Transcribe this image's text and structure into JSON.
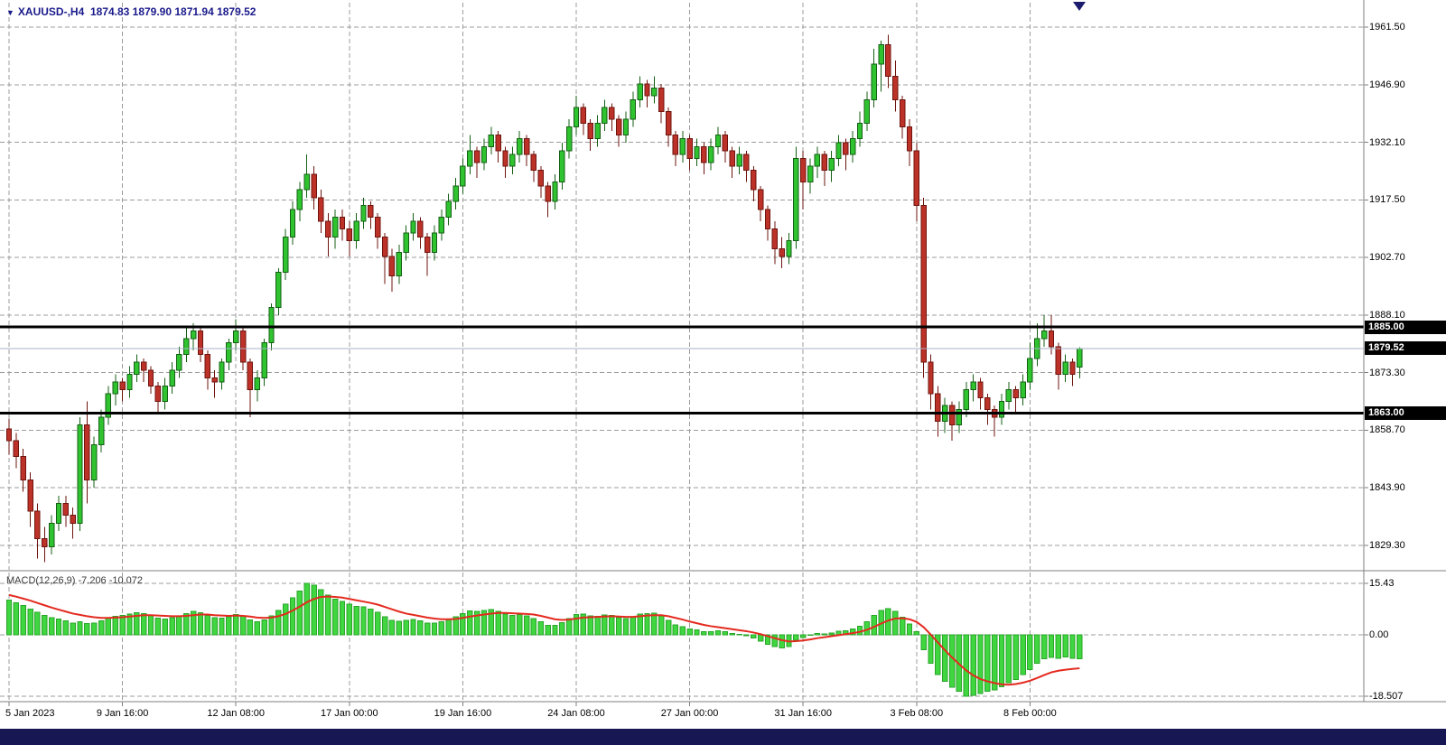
{
  "header": {
    "collapse_icon": "▼",
    "title": "XAUUSD-,H4",
    "values": "1874.83 1879.90 1871.94 1879.52"
  },
  "price_axis": {
    "labels": [
      "1961.50",
      "1946.90",
      "1932.10",
      "1917.50",
      "1902.70",
      "1888.10",
      "1873.30",
      "1858.70",
      "1843.90",
      "1829.30"
    ]
  },
  "time_axis": {
    "labels": [
      "5 Jan 2023",
      "9 Jan 16:00",
      "12 Jan 08:00",
      "17 Jan 00:00",
      "19 Jan 16:00",
      "24 Jan 08:00",
      "27 Jan 00:00",
      "31 Jan 16:00",
      "3 Feb 08:00",
      "8 Feb 00:00"
    ]
  },
  "levels": {
    "resistance": "1885.00",
    "support": "1863.00",
    "bid": "1879.52"
  },
  "macd_panel": {
    "label": "MACD(12,26,9)",
    "values": "-7.206 -10.072",
    "scale_labels": [
      "15.43",
      "0.00",
      "-18.507"
    ]
  },
  "colors": {
    "bull": "#2fc42f",
    "bull_border": "#145f14",
    "bear": "#bd3228",
    "bear_border": "#6e140e",
    "macd_bar": "#3fd63f",
    "macd_bar_border": "#2aa52a",
    "macd_signal": "#e42a1f",
    "grid": "#9c9c9c",
    "separator": "#7f7f7f",
    "level_line": "#000000",
    "bid_line": "#a8b0c8",
    "level_label_bg": "#000000",
    "level_label_fg": "#ffffff",
    "header_text": "#1a1a8c",
    "bottom_bar": "#171753",
    "marker": "#1c1c6e"
  },
  "chart_data": {
    "type": "candlestick",
    "symbol": "XAUUSD-",
    "timeframe": "H4",
    "title": "XAUUSD- H4 with MACD(12,26,9)",
    "ohlc_current": {
      "open": 1874.83,
      "high": 1879.9,
      "low": 1871.94,
      "close": 1879.52
    },
    "y_axis_ticks": [
      1961.5,
      1946.9,
      1932.1,
      1917.5,
      1902.7,
      1888.1,
      1873.3,
      1858.7,
      1843.9,
      1829.3
    ],
    "x_tick_bars": [
      0,
      16,
      32,
      48,
      64,
      80,
      96,
      112,
      128,
      144
    ],
    "hlines": [
      1885.0,
      1863.0
    ],
    "current_price": 1879.52,
    "candles": [
      [
        1859,
        1861.5,
        1852.5,
        1856
      ],
      [
        1856,
        1858,
        1849,
        1852
      ],
      [
        1852,
        1854,
        1843,
        1846
      ],
      [
        1846,
        1848,
        1834,
        1838
      ],
      [
        1838,
        1840,
        1826,
        1831
      ],
      [
        1831,
        1834,
        1825,
        1829
      ],
      [
        1829,
        1837,
        1827,
        1835
      ],
      [
        1835,
        1842,
        1833,
        1840
      ],
      [
        1840,
        1842,
        1834,
        1837
      ],
      [
        1837,
        1839,
        1831,
        1835
      ],
      [
        1835,
        1862,
        1833,
        1860
      ],
      [
        1860,
        1866,
        1840,
        1846
      ],
      [
        1846,
        1857,
        1844,
        1855
      ],
      [
        1855,
        1864,
        1853,
        1862
      ],
      [
        1862,
        1870,
        1860,
        1868
      ],
      [
        1868,
        1873,
        1865,
        1871
      ],
      [
        1871,
        1872,
        1866,
        1869
      ],
      [
        1869,
        1875,
        1867,
        1873
      ],
      [
        1873,
        1878,
        1871,
        1876
      ],
      [
        1876,
        1877,
        1871,
        1874
      ],
      [
        1874,
        1875,
        1868,
        1870
      ],
      [
        1870,
        1871,
        1863,
        1866
      ],
      [
        1866,
        1872,
        1864,
        1870
      ],
      [
        1870,
        1876,
        1868,
        1874
      ],
      [
        1874,
        1880,
        1872,
        1878
      ],
      [
        1878,
        1885,
        1876,
        1882
      ],
      [
        1882,
        1886,
        1879,
        1884
      ],
      [
        1884,
        1885,
        1876,
        1878
      ],
      [
        1878,
        1879,
        1869,
        1872
      ],
      [
        1872,
        1874,
        1867,
        1871
      ],
      [
        1871,
        1877,
        1869,
        1876
      ],
      [
        1876,
        1882,
        1874,
        1881
      ],
      [
        1881,
        1887,
        1879,
        1884
      ],
      [
        1884,
        1885,
        1874,
        1876
      ],
      [
        1876,
        1877,
        1862,
        1869
      ],
      [
        1869,
        1874,
        1866,
        1872
      ],
      [
        1872,
        1882,
        1870,
        1881
      ],
      [
        1881,
        1891,
        1879,
        1890
      ],
      [
        1890,
        1900,
        1888,
        1899
      ],
      [
        1899,
        1910,
        1897,
        1908
      ],
      [
        1908,
        1917,
        1906,
        1915
      ],
      [
        1915,
        1922,
        1912,
        1920
      ],
      [
        1920,
        1929,
        1918,
        1924
      ],
      [
        1924,
        1926,
        1915,
        1918
      ],
      [
        1918,
        1920,
        1909,
        1912
      ],
      [
        1912,
        1914,
        1903,
        1908
      ],
      [
        1908,
        1915,
        1905,
        1913
      ],
      [
        1913,
        1915,
        1907,
        1910
      ],
      [
        1910,
        1912,
        1903,
        1907
      ],
      [
        1907,
        1914,
        1905,
        1912
      ],
      [
        1912,
        1918,
        1910,
        1916
      ],
      [
        1916,
        1917,
        1910,
        1913
      ],
      [
        1913,
        1914,
        1905,
        1908
      ],
      [
        1908,
        1909,
        1896,
        1903
      ],
      [
        1903,
        1905,
        1894,
        1898
      ],
      [
        1898,
        1906,
        1896,
        1904
      ],
      [
        1904,
        1911,
        1902,
        1909
      ],
      [
        1909,
        1914,
        1907,
        1912
      ],
      [
        1912,
        1913,
        1905,
        1908
      ],
      [
        1908,
        1909,
        1898,
        1904
      ],
      [
        1904,
        1911,
        1902,
        1909
      ],
      [
        1909,
        1915,
        1907,
        1913
      ],
      [
        1913,
        1919,
        1911,
        1917
      ],
      [
        1917,
        1923,
        1915,
        1921
      ],
      [
        1921,
        1928,
        1919,
        1926
      ],
      [
        1926,
        1934,
        1924,
        1930
      ],
      [
        1930,
        1931,
        1923,
        1927
      ],
      [
        1927,
        1933,
        1925,
        1931
      ],
      [
        1931,
        1936,
        1929,
        1934
      ],
      [
        1934,
        1935,
        1927,
        1930
      ],
      [
        1930,
        1931,
        1923,
        1926
      ],
      [
        1926,
        1931,
        1924,
        1929
      ],
      [
        1929,
        1935,
        1927,
        1933
      ],
      [
        1933,
        1934,
        1926,
        1929
      ],
      [
        1929,
        1930,
        1922,
        1925
      ],
      [
        1925,
        1926,
        1918,
        1921
      ],
      [
        1921,
        1922,
        1913,
        1917
      ],
      [
        1917,
        1924,
        1915,
        1922
      ],
      [
        1922,
        1932,
        1920,
        1930
      ],
      [
        1930,
        1938,
        1928,
        1936
      ],
      [
        1936,
        1944,
        1934,
        1941
      ],
      [
        1941,
        1942,
        1934,
        1937
      ],
      [
        1937,
        1938,
        1930,
        1933
      ],
      [
        1933,
        1939,
        1931,
        1937
      ],
      [
        1937,
        1943,
        1935,
        1941
      ],
      [
        1941,
        1942,
        1935,
        1938
      ],
      [
        1938,
        1939,
        1931,
        1934
      ],
      [
        1934,
        1940,
        1932,
        1938
      ],
      [
        1938,
        1945,
        1936,
        1943
      ],
      [
        1943,
        1949,
        1941,
        1947
      ],
      [
        1947,
        1948,
        1941,
        1944
      ],
      [
        1944,
        1949,
        1942,
        1946
      ],
      [
        1946,
        1947,
        1937,
        1940
      ],
      [
        1940,
        1941,
        1931,
        1934
      ],
      [
        1934,
        1935,
        1926,
        1929
      ],
      [
        1929,
        1935,
        1927,
        1933
      ],
      [
        1933,
        1934,
        1925,
        1928
      ],
      [
        1928,
        1933,
        1926,
        1931
      ],
      [
        1931,
        1932,
        1924,
        1927
      ],
      [
        1927,
        1933,
        1925,
        1931
      ],
      [
        1931,
        1936,
        1929,
        1934
      ],
      [
        1934,
        1935,
        1927,
        1930
      ],
      [
        1930,
        1931,
        1923,
        1926
      ],
      [
        1926,
        1931,
        1924,
        1929
      ],
      [
        1929,
        1930,
        1922,
        1925
      ],
      [
        1925,
        1926,
        1917,
        1920
      ],
      [
        1920,
        1921,
        1912,
        1915
      ],
      [
        1915,
        1916,
        1907,
        1910
      ],
      [
        1910,
        1912,
        1901,
        1905
      ],
      [
        1905,
        1908,
        1900,
        1903
      ],
      [
        1903,
        1909,
        1901,
        1907
      ],
      [
        1907,
        1931,
        1905,
        1928
      ],
      [
        1928,
        1930,
        1915,
        1922
      ],
      [
        1922,
        1928,
        1919,
        1926
      ],
      [
        1926,
        1931,
        1923,
        1929
      ],
      [
        1929,
        1930,
        1921,
        1925
      ],
      [
        1925,
        1930,
        1922,
        1928
      ],
      [
        1928,
        1934,
        1926,
        1932
      ],
      [
        1932,
        1933,
        1925,
        1929
      ],
      [
        1929,
        1935,
        1927,
        1933
      ],
      [
        1933,
        1940,
        1931,
        1937
      ],
      [
        1937,
        1945,
        1935,
        1943
      ],
      [
        1943,
        1956,
        1941,
        1952
      ],
      [
        1952,
        1958,
        1945,
        1957
      ],
      [
        1957,
        1959.5,
        1946,
        1949
      ],
      [
        1949,
        1953,
        1940,
        1943
      ],
      [
        1943,
        1944,
        1933,
        1936
      ],
      [
        1936,
        1938,
        1926,
        1930
      ],
      [
        1930,
        1932,
        1912,
        1916
      ],
      [
        1916,
        1918,
        1872,
        1876
      ],
      [
        1876,
        1878,
        1864,
        1868
      ],
      [
        1868,
        1870,
        1857,
        1861
      ],
      [
        1861,
        1867,
        1858,
        1865
      ],
      [
        1865,
        1866,
        1856,
        1860
      ],
      [
        1860,
        1866,
        1858,
        1864
      ],
      [
        1864,
        1871,
        1862,
        1869
      ],
      [
        1869,
        1873,
        1866,
        1871
      ],
      [
        1871,
        1872,
        1864,
        1867
      ],
      [
        1867,
        1868,
        1860,
        1864
      ],
      [
        1864,
        1865,
        1857,
        1862
      ],
      [
        1862,
        1868,
        1860,
        1866
      ],
      [
        1866,
        1871,
        1864,
        1869
      ],
      [
        1869,
        1870,
        1863,
        1867
      ],
      [
        1867,
        1873,
        1865,
        1871
      ],
      [
        1871,
        1881,
        1869,
        1877
      ],
      [
        1877,
        1886,
        1875,
        1882
      ],
      [
        1882,
        1888,
        1880,
        1884
      ],
      [
        1884,
        1888,
        1878,
        1880
      ],
      [
        1880,
        1881,
        1869,
        1873
      ],
      [
        1873,
        1878,
        1871,
        1876
      ],
      [
        1876,
        1877,
        1870,
        1873
      ],
      [
        1874.83,
        1879.9,
        1871.94,
        1879.52
      ]
    ],
    "macd": {
      "name": "MACD",
      "params": "12,26,9",
      "scale": [
        15.43,
        0.0,
        -18.507
      ],
      "histogram": [
        10.5,
        9.6,
        8.8,
        7.8,
        6.8,
        5.8,
        5.2,
        4.8,
        4.2,
        3.6,
        4.0,
        3.4,
        3.6,
        4.2,
        5.0,
        5.6,
        5.8,
        6.2,
        6.6,
        6.4,
        5.8,
        5.0,
        4.8,
        5.1,
        5.7,
        6.4,
        7.0,
        6.7,
        5.9,
        5.1,
        5.0,
        5.5,
        6.1,
        5.6,
        4.5,
        4.0,
        4.5,
        5.7,
        7.3,
        9.2,
        11.2,
        13.2,
        15.43,
        14.9,
        13.6,
        12.0,
        10.8,
        10.0,
        9.2,
        8.6,
        8.4,
        7.8,
        6.8,
        5.5,
        4.4,
        4.1,
        4.3,
        4.6,
        4.2,
        3.6,
        3.6,
        4.0,
        4.7,
        5.5,
        6.4,
        7.2,
        7.1,
        7.3,
        7.6,
        7.1,
        6.3,
        5.9,
        6.1,
        5.7,
        4.9,
        3.9,
        2.9,
        2.9,
        3.7,
        4.9,
        6.1,
        6.3,
        5.7,
        5.6,
        6.0,
        5.9,
        5.1,
        4.9,
        5.5,
        6.3,
        6.4,
        6.5,
        5.7,
        4.4,
        3.0,
        2.5,
        1.7,
        1.5,
        1.0,
        1.0,
        1.2,
        1.0,
        0.4,
        0.2,
        -0.3,
        -1.0,
        -1.9,
        -2.8,
        -3.6,
        -4.0,
        -3.6,
        -1.6,
        -0.8,
        -0.2,
        0.4,
        0.3,
        0.5,
        1.1,
        1.2,
        1.7,
        2.6,
        3.9,
        5.8,
        7.3,
        7.9,
        7.0,
        5.3,
        3.3,
        0.9,
        -4.5,
        -8.5,
        -12.0,
        -14.0,
        -15.8,
        -17.0,
        -18.5,
        -18.2,
        -17.6,
        -17.0,
        -16.6,
        -15.6,
        -14.4,
        -13.4,
        -12.0,
        -10.4,
        -8.6,
        -7.2,
        -6.8,
        -7.0,
        -6.6,
        -7.0,
        -7.206
      ],
      "signal": [
        12.0,
        11.5,
        10.9,
        10.3,
        9.6,
        8.9,
        8.2,
        7.6,
        7.0,
        6.4,
        6.0,
        5.6,
        5.3,
        5.1,
        5.1,
        5.2,
        5.3,
        5.5,
        5.7,
        5.9,
        5.9,
        5.8,
        5.7,
        5.6,
        5.6,
        5.7,
        5.9,
        6.1,
        6.1,
        5.9,
        5.8,
        5.7,
        5.8,
        5.7,
        5.5,
        5.2,
        5.1,
        5.2,
        5.6,
        6.3,
        7.3,
        8.5,
        9.8,
        10.8,
        11.4,
        11.5,
        11.4,
        11.2,
        10.8,
        10.4,
        10.0,
        9.6,
        9.1,
        8.4,
        7.7,
        7.0,
        6.4,
        6.0,
        5.6,
        5.2,
        4.9,
        4.7,
        4.7,
        4.8,
        5.1,
        5.5,
        5.8,
        6.1,
        6.4,
        6.6,
        6.6,
        6.5,
        6.4,
        6.3,
        6.1,
        5.7,
        5.2,
        4.7,
        4.5,
        4.6,
        4.9,
        5.2,
        5.3,
        5.4,
        5.5,
        5.6,
        5.5,
        5.4,
        5.4,
        5.6,
        5.8,
        5.9,
        5.9,
        5.6,
        5.1,
        4.6,
        4.0,
        3.5,
        3.0,
        2.6,
        2.3,
        2.0,
        1.7,
        1.4,
        1.1,
        0.7,
        0.2,
        -0.4,
        -1.0,
        -1.6,
        -2.0,
        -1.9,
        -1.7,
        -1.4,
        -1.0,
        -0.7,
        -0.4,
        -0.1,
        0.2,
        0.5,
        0.9,
        1.5,
        2.4,
        3.4,
        4.3,
        4.9,
        5.0,
        4.7,
        3.9,
        2.3,
        0.1,
        -2.3,
        -4.6,
        -6.8,
        -8.8,
        -10.7,
        -12.2,
        -13.3,
        -14.0,
        -14.5,
        -14.9,
        -15.0,
        -14.8,
        -14.4,
        -13.8,
        -13.0,
        -12.1,
        -11.3,
        -10.8,
        -10.5,
        -10.25,
        -10.072
      ]
    }
  }
}
